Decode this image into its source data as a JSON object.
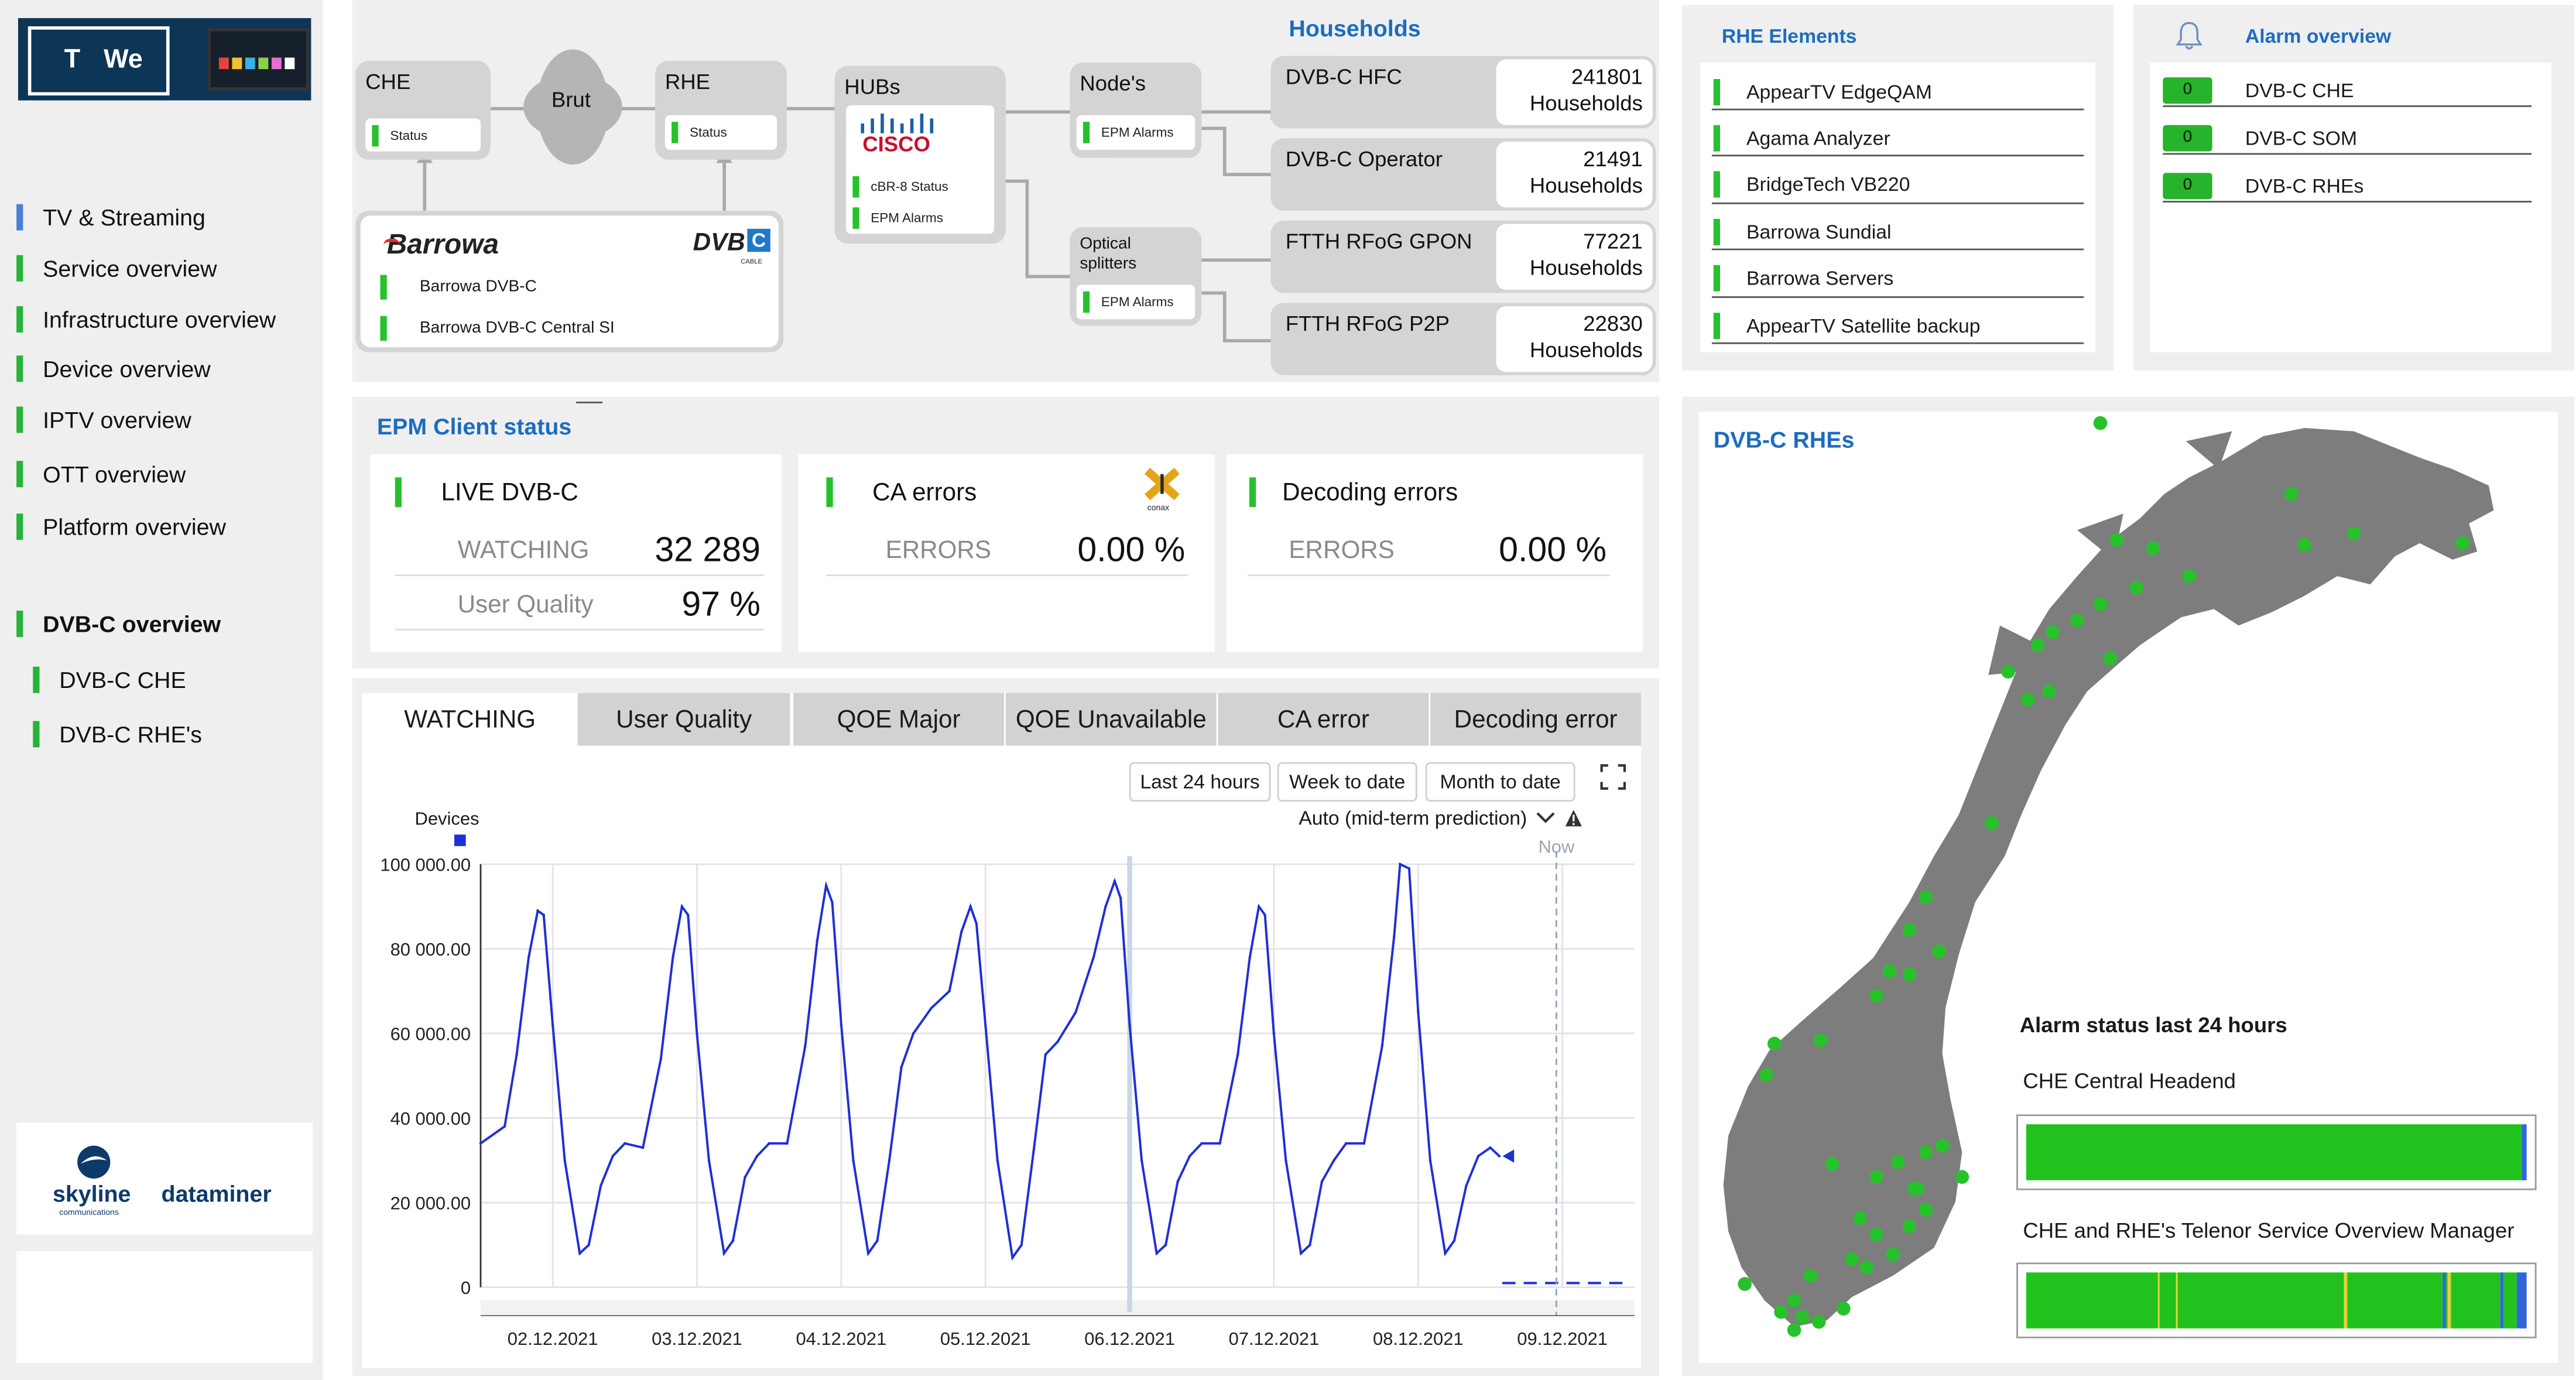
{
  "logo": {
    "letters_left": "T",
    "letters_right": "We"
  },
  "nav": {
    "items": [
      {
        "label": "TV & Streaming",
        "bar": "blue",
        "bold": false
      },
      {
        "label": "Service overview",
        "bar": "green",
        "bold": false
      },
      {
        "label": "Infrastructure overview",
        "bar": "green",
        "bold": false
      },
      {
        "label": "Device overview",
        "bar": "green",
        "bold": false
      },
      {
        "label": "IPTV overview",
        "bar": "green",
        "bold": false
      },
      {
        "label": "OTT overview",
        "bar": "green",
        "bold": false
      },
      {
        "label": "Platform overview",
        "bar": "green",
        "bold": false
      },
      {
        "label": "DVB-C overview",
        "bar": "green",
        "bold": true
      },
      {
        "label": "DVB-C CHE",
        "bar": "green",
        "bold": false
      },
      {
        "label": "DVB-C RHE's",
        "bar": "green",
        "bold": false
      }
    ]
  },
  "brand": {
    "skyline": "skyline",
    "skyline_sub": "communications",
    "dataminer": "dataminer"
  },
  "topology": {
    "che": {
      "title": "CHE",
      "status": "Status"
    },
    "brut": "Brut",
    "rhe": {
      "title": "RHE",
      "status": "Status"
    },
    "hubs": {
      "title": "HUBs",
      "vendor": "CISCO",
      "status": "cBR-8 Status",
      "alarms": "EPM Alarms"
    },
    "nodes": {
      "title": "Node's",
      "alarms": "EPM Alarms"
    },
    "splitters": {
      "title": "Optical splitters",
      "alarms": "EPM Alarms"
    },
    "barrowa": {
      "brand": "Barrowa",
      "dvb": "DVB",
      "dvb_c": "C",
      "dvb_sub": "CABLE",
      "item1": "Barrowa DVB-C",
      "item2": "Barrowa DVB-C Central SI"
    },
    "households_title": "Households",
    "households": [
      {
        "label": "DVB-C HFC",
        "value": "241801",
        "unit": "Households"
      },
      {
        "label": "DVB-C Operator",
        "value": "21491",
        "unit": "Households"
      },
      {
        "label": "FTTH RFoG GPON",
        "value": "77221",
        "unit": "Households"
      },
      {
        "label": "FTTH RFoG P2P",
        "value": "22830",
        "unit": "Households"
      }
    ]
  },
  "rhe_elements": {
    "title": "RHE Elements",
    "items": [
      "AppearTV EdgeQAM",
      "Agama Analyzer",
      "BridgeTech VB220",
      "Barrowa Sundial",
      "Barrowa Servers",
      "AppearTV Satellite backup"
    ]
  },
  "alarm_overview": {
    "title": "Alarm overview",
    "items": [
      {
        "count": "0",
        "label": "DVB-C CHE"
      },
      {
        "count": "0",
        "label": "DVB-C SOM"
      },
      {
        "count": "0",
        "label": "DVB-C RHEs"
      }
    ]
  },
  "epm": {
    "title": "EPM Client status",
    "live": {
      "title": "LIVE DVB-C",
      "watching_label": "WATCHING",
      "watching_value": "32 289",
      "quality_label": "User Quality",
      "quality_value": "97 %"
    },
    "ca": {
      "title": "CA errors",
      "logo": "conax",
      "errors_label": "ERRORS",
      "errors_value": "0.00 %"
    },
    "decoding": {
      "title": "Decoding errors",
      "errors_label": "ERRORS",
      "errors_value": "0.00 %"
    }
  },
  "trend": {
    "tabs": [
      "WATCHING",
      "User Quality",
      "QOE Major",
      "QOE Unavailable",
      "CA error",
      "Decoding error"
    ],
    "active_tab": 0,
    "ranges": [
      "Last 24 hours",
      "Week to date",
      "Month to date"
    ],
    "prediction": "Auto (mid-term prediction)",
    "now_label": "Now"
  },
  "chart_data": {
    "type": "line",
    "ylabel": "Devices",
    "ylim": [
      0,
      100000
    ],
    "yticks": [
      "100 000.00",
      "80 000.00",
      "60 000.00",
      "40 000.00",
      "20 000.00",
      "0"
    ],
    "ytick_values": [
      100000,
      80000,
      60000,
      40000,
      20000,
      0
    ],
    "xticks": [
      "02.12.2021",
      "03.12.2021",
      "04.12.2021",
      "05.12.2021",
      "06.12.2021",
      "07.12.2021",
      "08.12.2021",
      "09.12.2021"
    ],
    "xlim": [
      "2021-12-01T12:00",
      "2021-12-09T12:00"
    ],
    "now": "2021-12-08T23:00",
    "grid": true,
    "series": [
      {
        "color": "#1f2fd6",
        "points": [
          [
            "2021-12-01T12:00",
            34000
          ],
          [
            "2021-12-01T16:00",
            38000
          ],
          [
            "2021-12-01T18:00",
            55000
          ],
          [
            "2021-12-01T20:00",
            78000
          ],
          [
            "2021-12-01T21:30",
            89000
          ],
          [
            "2021-12-01T22:30",
            88000
          ],
          [
            "2021-12-02T00:00",
            62000
          ],
          [
            "2021-12-02T02:00",
            30000
          ],
          [
            "2021-12-02T04:30",
            8000
          ],
          [
            "2021-12-02T06:00",
            10000
          ],
          [
            "2021-12-02T08:00",
            24000
          ],
          [
            "2021-12-02T10:00",
            31000
          ],
          [
            "2021-12-02T12:00",
            34000
          ],
          [
            "2021-12-02T15:00",
            33000
          ],
          [
            "2021-12-02T18:00",
            54000
          ],
          [
            "2021-12-02T20:00",
            78000
          ],
          [
            "2021-12-02T21:30",
            90000
          ],
          [
            "2021-12-02T22:30",
            88000
          ],
          [
            "2021-12-03T00:00",
            60000
          ],
          [
            "2021-12-03T02:00",
            30000
          ],
          [
            "2021-12-03T04:30",
            8000
          ],
          [
            "2021-12-03T06:00",
            11000
          ],
          [
            "2021-12-03T08:00",
            26000
          ],
          [
            "2021-12-03T10:00",
            31000
          ],
          [
            "2021-12-03T12:00",
            34000
          ],
          [
            "2021-12-03T15:00",
            34000
          ],
          [
            "2021-12-03T18:00",
            57000
          ],
          [
            "2021-12-03T20:00",
            82000
          ],
          [
            "2021-12-03T21:30",
            95000
          ],
          [
            "2021-12-03T22:30",
            91000
          ],
          [
            "2021-12-04T00:00",
            62000
          ],
          [
            "2021-12-04T02:00",
            30000
          ],
          [
            "2021-12-04T04:30",
            8000
          ],
          [
            "2021-12-04T06:00",
            11000
          ],
          [
            "2021-12-04T08:00",
            30000
          ],
          [
            "2021-12-04T10:00",
            52000
          ],
          [
            "2021-12-04T12:00",
            60000
          ],
          [
            "2021-12-04T15:00",
            66000
          ],
          [
            "2021-12-04T18:00",
            70000
          ],
          [
            "2021-12-04T20:00",
            84000
          ],
          [
            "2021-12-04T21:30",
            90000
          ],
          [
            "2021-12-04T22:30",
            86000
          ],
          [
            "2021-12-05T00:00",
            62000
          ],
          [
            "2021-12-05T02:00",
            30000
          ],
          [
            "2021-12-05T04:30",
            7000
          ],
          [
            "2021-12-05T06:00",
            10000
          ],
          [
            "2021-12-05T08:00",
            32000
          ],
          [
            "2021-12-05T10:00",
            55000
          ],
          [
            "2021-12-05T12:00",
            58000
          ],
          [
            "2021-12-05T15:00",
            65000
          ],
          [
            "2021-12-05T18:00",
            78000
          ],
          [
            "2021-12-05T20:00",
            90000
          ],
          [
            "2021-12-05T21:30",
            96000
          ],
          [
            "2021-12-05T22:30",
            92000
          ],
          [
            "2021-12-06T00:00",
            62000
          ],
          [
            "2021-12-06T02:00",
            30000
          ],
          [
            "2021-12-06T04:30",
            8000
          ],
          [
            "2021-12-06T06:00",
            10000
          ],
          [
            "2021-12-06T08:00",
            25000
          ],
          [
            "2021-12-06T10:00",
            31000
          ],
          [
            "2021-12-06T12:00",
            34000
          ],
          [
            "2021-12-06T15:00",
            34000
          ],
          [
            "2021-12-06T18:00",
            55000
          ],
          [
            "2021-12-06T20:00",
            78000
          ],
          [
            "2021-12-06T21:30",
            90000
          ],
          [
            "2021-12-06T22:30",
            88000
          ],
          [
            "2021-12-07T00:00",
            60000
          ],
          [
            "2021-12-07T02:00",
            30000
          ],
          [
            "2021-12-07T04:30",
            8000
          ],
          [
            "2021-12-07T06:00",
            10000
          ],
          [
            "2021-12-07T08:00",
            25000
          ],
          [
            "2021-12-07T10:00",
            30000
          ],
          [
            "2021-12-07T12:00",
            34000
          ],
          [
            "2021-12-07T15:00",
            34000
          ],
          [
            "2021-12-07T18:00",
            57000
          ],
          [
            "2021-12-07T20:00",
            83000
          ],
          [
            "2021-12-07T21:00",
            100000
          ],
          [
            "2021-12-07T22:30",
            99000
          ],
          [
            "2021-12-08T00:00",
            65000
          ],
          [
            "2021-12-08T02:00",
            30000
          ],
          [
            "2021-12-08T04:30",
            8000
          ],
          [
            "2021-12-08T06:00",
            11000
          ],
          [
            "2021-12-08T08:00",
            24000
          ],
          [
            "2021-12-08T10:00",
            31000
          ],
          [
            "2021-12-08T12:00",
            33000
          ],
          [
            "2021-12-08T13:30",
            31000
          ]
        ],
        "prediction": [
          [
            "2021-12-08T14:00",
            1000
          ],
          [
            "2021-12-09T11:00",
            1000
          ]
        ]
      }
    ]
  },
  "map": {
    "title": "DVB-C RHEs",
    "alarm_title": "Alarm status last 24 hours",
    "bars": [
      {
        "label": "CHE Central Headend",
        "segments": [
          {
            "color": "#22c21e",
            "share": 0.99
          },
          {
            "color": "#2f66d8",
            "share": 0.01
          }
        ]
      },
      {
        "label": "CHE and RHE's Telenor Service Overview Manager",
        "segments": [
          {
            "color": "#22c21e",
            "share": 0.26
          },
          {
            "color": "#e3d23a",
            "share": 0.005
          },
          {
            "color": "#22c21e",
            "share": 0.03
          },
          {
            "color": "#e3d23a",
            "share": 0.005
          },
          {
            "color": "#22c21e",
            "share": 0.33
          },
          {
            "color": "#e3d23a",
            "share": 0.005
          },
          {
            "color": "#22c21e",
            "share": 0.19
          },
          {
            "color": "#2f66d8",
            "share": 0.004
          },
          {
            "color": "#22c21e",
            "share": 0.005
          },
          {
            "color": "#e3d23a",
            "share": 0.005
          },
          {
            "color": "#22c21e",
            "share": 0.1
          },
          {
            "color": "#2f66d8",
            "share": 0.006
          },
          {
            "color": "#22c21e",
            "share": 0.025
          },
          {
            "color": "#2f66d8",
            "share": 0.02
          }
        ]
      }
    ]
  },
  "colors": {
    "green": "#27c22b",
    "blue_title": "#1c6dbe",
    "line": "#1f2fd6"
  }
}
